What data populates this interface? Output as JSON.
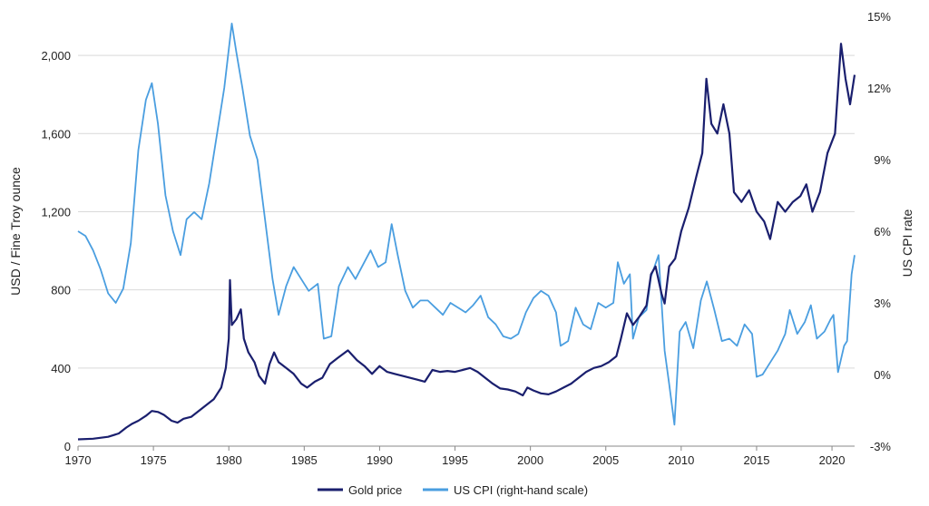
{
  "chart_data": {
    "type": "line",
    "title": "",
    "xlabel": "",
    "ylabel": "USD / Fine Troy ounce",
    "y2label": "US CPI rate",
    "xlim": [
      1970,
      2021.5
    ],
    "ylim": [
      0,
      2200
    ],
    "y2lim": [
      -3,
      15
    ],
    "x_ticks": [
      "1970",
      "1975",
      "1980",
      "1985",
      "1990",
      "1995",
      "2000",
      "2005",
      "2010",
      "2015",
      "2020"
    ],
    "y_ticks": [
      "0",
      "400",
      "800",
      "1,200",
      "1,600",
      "2,000"
    ],
    "y2_ticks": [
      "-3%",
      "0%",
      "3%",
      "6%",
      "9%",
      "12%",
      "15%"
    ],
    "legend_position": "bottom-center",
    "series": [
      {
        "name": "Gold price",
        "axis": "left",
        "color": "#1a1f6e",
        "points": [
          [
            1970.0,
            35
          ],
          [
            1971.0,
            38
          ],
          [
            1972.0,
            48
          ],
          [
            1972.7,
            65
          ],
          [
            1973.2,
            95
          ],
          [
            1973.6,
            115
          ],
          [
            1974.0,
            130
          ],
          [
            1974.5,
            155
          ],
          [
            1974.9,
            180
          ],
          [
            1975.3,
            175
          ],
          [
            1975.7,
            160
          ],
          [
            1976.2,
            130
          ],
          [
            1976.6,
            120
          ],
          [
            1977.0,
            140
          ],
          [
            1977.5,
            150
          ],
          [
            1978.0,
            180
          ],
          [
            1978.5,
            210
          ],
          [
            1979.0,
            240
          ],
          [
            1979.5,
            300
          ],
          [
            1979.8,
            400
          ],
          [
            1980.0,
            550
          ],
          [
            1980.08,
            850
          ],
          [
            1980.2,
            620
          ],
          [
            1980.5,
            650
          ],
          [
            1980.8,
            700
          ],
          [
            1981.0,
            550
          ],
          [
            1981.3,
            480
          ],
          [
            1981.7,
            430
          ],
          [
            1982.0,
            360
          ],
          [
            1982.4,
            320
          ],
          [
            1982.7,
            420
          ],
          [
            1983.0,
            480
          ],
          [
            1983.3,
            430
          ],
          [
            1983.8,
            400
          ],
          [
            1984.3,
            370
          ],
          [
            1984.8,
            320
          ],
          [
            1985.2,
            300
          ],
          [
            1985.7,
            330
          ],
          [
            1986.2,
            350
          ],
          [
            1986.7,
            420
          ],
          [
            1987.2,
            450
          ],
          [
            1987.9,
            490
          ],
          [
            1988.5,
            440
          ],
          [
            1989.0,
            410
          ],
          [
            1989.5,
            370
          ],
          [
            1990.0,
            410
          ],
          [
            1990.5,
            380
          ],
          [
            1991.0,
            370
          ],
          [
            1991.5,
            360
          ],
          [
            1992.0,
            350
          ],
          [
            1992.5,
            340
          ],
          [
            1993.0,
            330
          ],
          [
            1993.5,
            390
          ],
          [
            1994.0,
            380
          ],
          [
            1994.5,
            385
          ],
          [
            1995.0,
            380
          ],
          [
            1995.5,
            390
          ],
          [
            1996.0,
            400
          ],
          [
            1996.5,
            380
          ],
          [
            1997.0,
            350
          ],
          [
            1997.5,
            320
          ],
          [
            1998.0,
            295
          ],
          [
            1998.5,
            290
          ],
          [
            1999.0,
            280
          ],
          [
            1999.5,
            260
          ],
          [
            1999.8,
            300
          ],
          [
            2000.2,
            285
          ],
          [
            2000.7,
            270
          ],
          [
            2001.2,
            265
          ],
          [
            2001.7,
            280
          ],
          [
            2002.2,
            300
          ],
          [
            2002.7,
            320
          ],
          [
            2003.2,
            350
          ],
          [
            2003.7,
            380
          ],
          [
            2004.2,
            400
          ],
          [
            2004.7,
            410
          ],
          [
            2005.2,
            430
          ],
          [
            2005.7,
            460
          ],
          [
            2006.0,
            550
          ],
          [
            2006.4,
            680
          ],
          [
            2006.8,
            620
          ],
          [
            2007.2,
            660
          ],
          [
            2007.7,
            720
          ],
          [
            2008.0,
            880
          ],
          [
            2008.3,
            920
          ],
          [
            2008.7,
            780
          ],
          [
            2008.9,
            730
          ],
          [
            2009.2,
            920
          ],
          [
            2009.6,
            960
          ],
          [
            2010.0,
            1100
          ],
          [
            2010.5,
            1220
          ],
          [
            2011.0,
            1380
          ],
          [
            2011.4,
            1500
          ],
          [
            2011.67,
            1880
          ],
          [
            2012.0,
            1650
          ],
          [
            2012.4,
            1600
          ],
          [
            2012.8,
            1750
          ],
          [
            2013.2,
            1600
          ],
          [
            2013.5,
            1300
          ],
          [
            2014.0,
            1250
          ],
          [
            2014.5,
            1310
          ],
          [
            2015.0,
            1200
          ],
          [
            2015.5,
            1150
          ],
          [
            2015.9,
            1060
          ],
          [
            2016.4,
            1250
          ],
          [
            2016.9,
            1200
          ],
          [
            2017.4,
            1250
          ],
          [
            2017.9,
            1280
          ],
          [
            2018.3,
            1340
          ],
          [
            2018.7,
            1200
          ],
          [
            2019.2,
            1300
          ],
          [
            2019.7,
            1500
          ],
          [
            2020.2,
            1600
          ],
          [
            2020.6,
            2060
          ],
          [
            2020.9,
            1880
          ],
          [
            2021.2,
            1750
          ],
          [
            2021.5,
            1900
          ]
        ]
      },
      {
        "name": "US CPI (right-hand scale)",
        "axis": "right",
        "color": "#4a9ee0",
        "points": [
          [
            1970.0,
            6.0
          ],
          [
            1970.5,
            5.8
          ],
          [
            1971.0,
            5.2
          ],
          [
            1971.5,
            4.4
          ],
          [
            1972.0,
            3.4
          ],
          [
            1972.5,
            3.0
          ],
          [
            1973.0,
            3.6
          ],
          [
            1973.5,
            5.5
          ],
          [
            1974.0,
            9.4
          ],
          [
            1974.5,
            11.5
          ],
          [
            1974.9,
            12.2
          ],
          [
            1975.3,
            10.5
          ],
          [
            1975.8,
            7.5
          ],
          [
            1976.3,
            6.0
          ],
          [
            1976.8,
            5.0
          ],
          [
            1977.2,
            6.5
          ],
          [
            1977.7,
            6.8
          ],
          [
            1978.2,
            6.5
          ],
          [
            1978.7,
            8.0
          ],
          [
            1979.2,
            10.0
          ],
          [
            1979.7,
            12.0
          ],
          [
            1980.2,
            14.7
          ],
          [
            1980.5,
            13.5
          ],
          [
            1980.9,
            12.0
          ],
          [
            1981.4,
            10.0
          ],
          [
            1981.9,
            9.0
          ],
          [
            1982.4,
            6.5
          ],
          [
            1982.9,
            4.0
          ],
          [
            1983.3,
            2.5
          ],
          [
            1983.8,
            3.7
          ],
          [
            1984.3,
            4.5
          ],
          [
            1984.8,
            4.0
          ],
          [
            1985.3,
            3.5
          ],
          [
            1985.9,
            3.8
          ],
          [
            1986.3,
            1.5
          ],
          [
            1986.8,
            1.6
          ],
          [
            1987.3,
            3.7
          ],
          [
            1987.9,
            4.5
          ],
          [
            1988.4,
            4.0
          ],
          [
            1988.9,
            4.6
          ],
          [
            1989.4,
            5.2
          ],
          [
            1989.9,
            4.5
          ],
          [
            1990.4,
            4.7
          ],
          [
            1990.8,
            6.3
          ],
          [
            1991.2,
            5.0
          ],
          [
            1991.7,
            3.5
          ],
          [
            1992.2,
            2.8
          ],
          [
            1992.7,
            3.1
          ],
          [
            1993.2,
            3.1
          ],
          [
            1993.7,
            2.8
          ],
          [
            1994.2,
            2.5
          ],
          [
            1994.7,
            3.0
          ],
          [
            1995.2,
            2.8
          ],
          [
            1995.7,
            2.6
          ],
          [
            1996.2,
            2.9
          ],
          [
            1996.7,
            3.3
          ],
          [
            1997.2,
            2.4
          ],
          [
            1997.7,
            2.1
          ],
          [
            1998.2,
            1.6
          ],
          [
            1998.7,
            1.5
          ],
          [
            1999.2,
            1.7
          ],
          [
            1999.7,
            2.6
          ],
          [
            2000.2,
            3.2
          ],
          [
            2000.7,
            3.5
          ],
          [
            2001.2,
            3.3
          ],
          [
            2001.7,
            2.6
          ],
          [
            2002.0,
            1.2
          ],
          [
            2002.5,
            1.4
          ],
          [
            2003.0,
            2.8
          ],
          [
            2003.5,
            2.1
          ],
          [
            2004.0,
            1.9
          ],
          [
            2004.5,
            3.0
          ],
          [
            2005.0,
            2.8
          ],
          [
            2005.5,
            3.0
          ],
          [
            2005.8,
            4.7
          ],
          [
            2006.2,
            3.8
          ],
          [
            2006.6,
            4.2
          ],
          [
            2006.8,
            1.5
          ],
          [
            2007.2,
            2.4
          ],
          [
            2007.7,
            2.7
          ],
          [
            2008.0,
            4.1
          ],
          [
            2008.5,
            5.0
          ],
          [
            2008.9,
            1.0
          ],
          [
            2009.2,
            -0.4
          ],
          [
            2009.55,
            -2.1
          ],
          [
            2009.9,
            1.8
          ],
          [
            2010.3,
            2.2
          ],
          [
            2010.8,
            1.1
          ],
          [
            2011.3,
            3.1
          ],
          [
            2011.7,
            3.9
          ],
          [
            2012.2,
            2.7
          ],
          [
            2012.7,
            1.4
          ],
          [
            2013.2,
            1.5
          ],
          [
            2013.7,
            1.2
          ],
          [
            2014.2,
            2.1
          ],
          [
            2014.7,
            1.7
          ],
          [
            2015.0,
            -0.1
          ],
          [
            2015.4,
            0.0
          ],
          [
            2015.9,
            0.5
          ],
          [
            2016.4,
            1.0
          ],
          [
            2016.9,
            1.7
          ],
          [
            2017.2,
            2.7
          ],
          [
            2017.7,
            1.7
          ],
          [
            2018.2,
            2.2
          ],
          [
            2018.6,
            2.9
          ],
          [
            2019.0,
            1.5
          ],
          [
            2019.5,
            1.8
          ],
          [
            2019.9,
            2.3
          ],
          [
            2020.1,
            2.5
          ],
          [
            2020.4,
            0.1
          ],
          [
            2020.8,
            1.2
          ],
          [
            2021.0,
            1.4
          ],
          [
            2021.3,
            4.2
          ],
          [
            2021.5,
            5.0
          ]
        ]
      }
    ]
  }
}
